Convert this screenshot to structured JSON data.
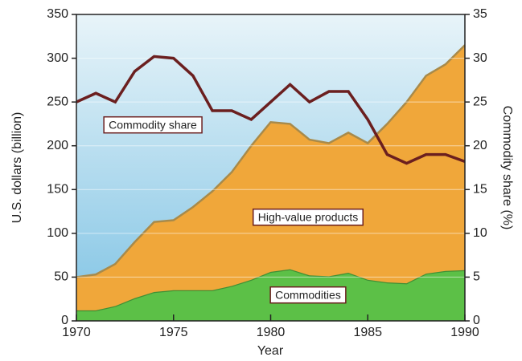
{
  "chart_data": {
    "type": "stacked-area-line",
    "x": [
      1970,
      1971,
      1972,
      1973,
      1974,
      1975,
      1976,
      1977,
      1978,
      1979,
      1980,
      1981,
      1982,
      1983,
      1984,
      1985,
      1986,
      1987,
      1988,
      1989,
      1990
    ],
    "xlim": [
      1970,
      1990
    ],
    "xticks": [
      1970,
      1975,
      1980,
      1985,
      1990
    ],
    "ylim": [
      0,
      350
    ],
    "yticks": [
      0,
      50,
      100,
      150,
      200,
      250,
      300,
      350
    ],
    "y2lim": [
      0,
      35
    ],
    "y2ticks": [
      0,
      5,
      10,
      15,
      20,
      25,
      30,
      35
    ],
    "xlabel": "Year",
    "ylabel": "U.S. dollars (billion)",
    "y2label": "Commodity share (%)",
    "grid": true,
    "series": [
      {
        "name": "Commodities",
        "color": "#5cc047",
        "values": [
          12,
          12,
          17,
          26,
          33,
          35,
          35,
          35,
          40,
          47,
          56,
          59,
          52,
          51,
          55,
          47,
          44,
          43,
          54,
          57,
          58
        ]
      },
      {
        "name": "High-value products",
        "color": "#f0a73a",
        "values": [
          38,
          41,
          48,
          64,
          80,
          80,
          95,
          113,
          130,
          153,
          171,
          166,
          155,
          152,
          160,
          156,
          181,
          207,
          226,
          236,
          257
        ]
      },
      {
        "name": "Commodity share",
        "color": "#6b1f1f",
        "axis": "y2",
        "values": [
          25,
          26,
          25,
          28.5,
          30.2,
          30,
          28,
          24,
          24,
          23,
          25,
          27,
          25,
          26.2,
          26.2,
          23,
          19,
          18,
          19,
          19,
          18.2
        ]
      }
    ]
  }
}
